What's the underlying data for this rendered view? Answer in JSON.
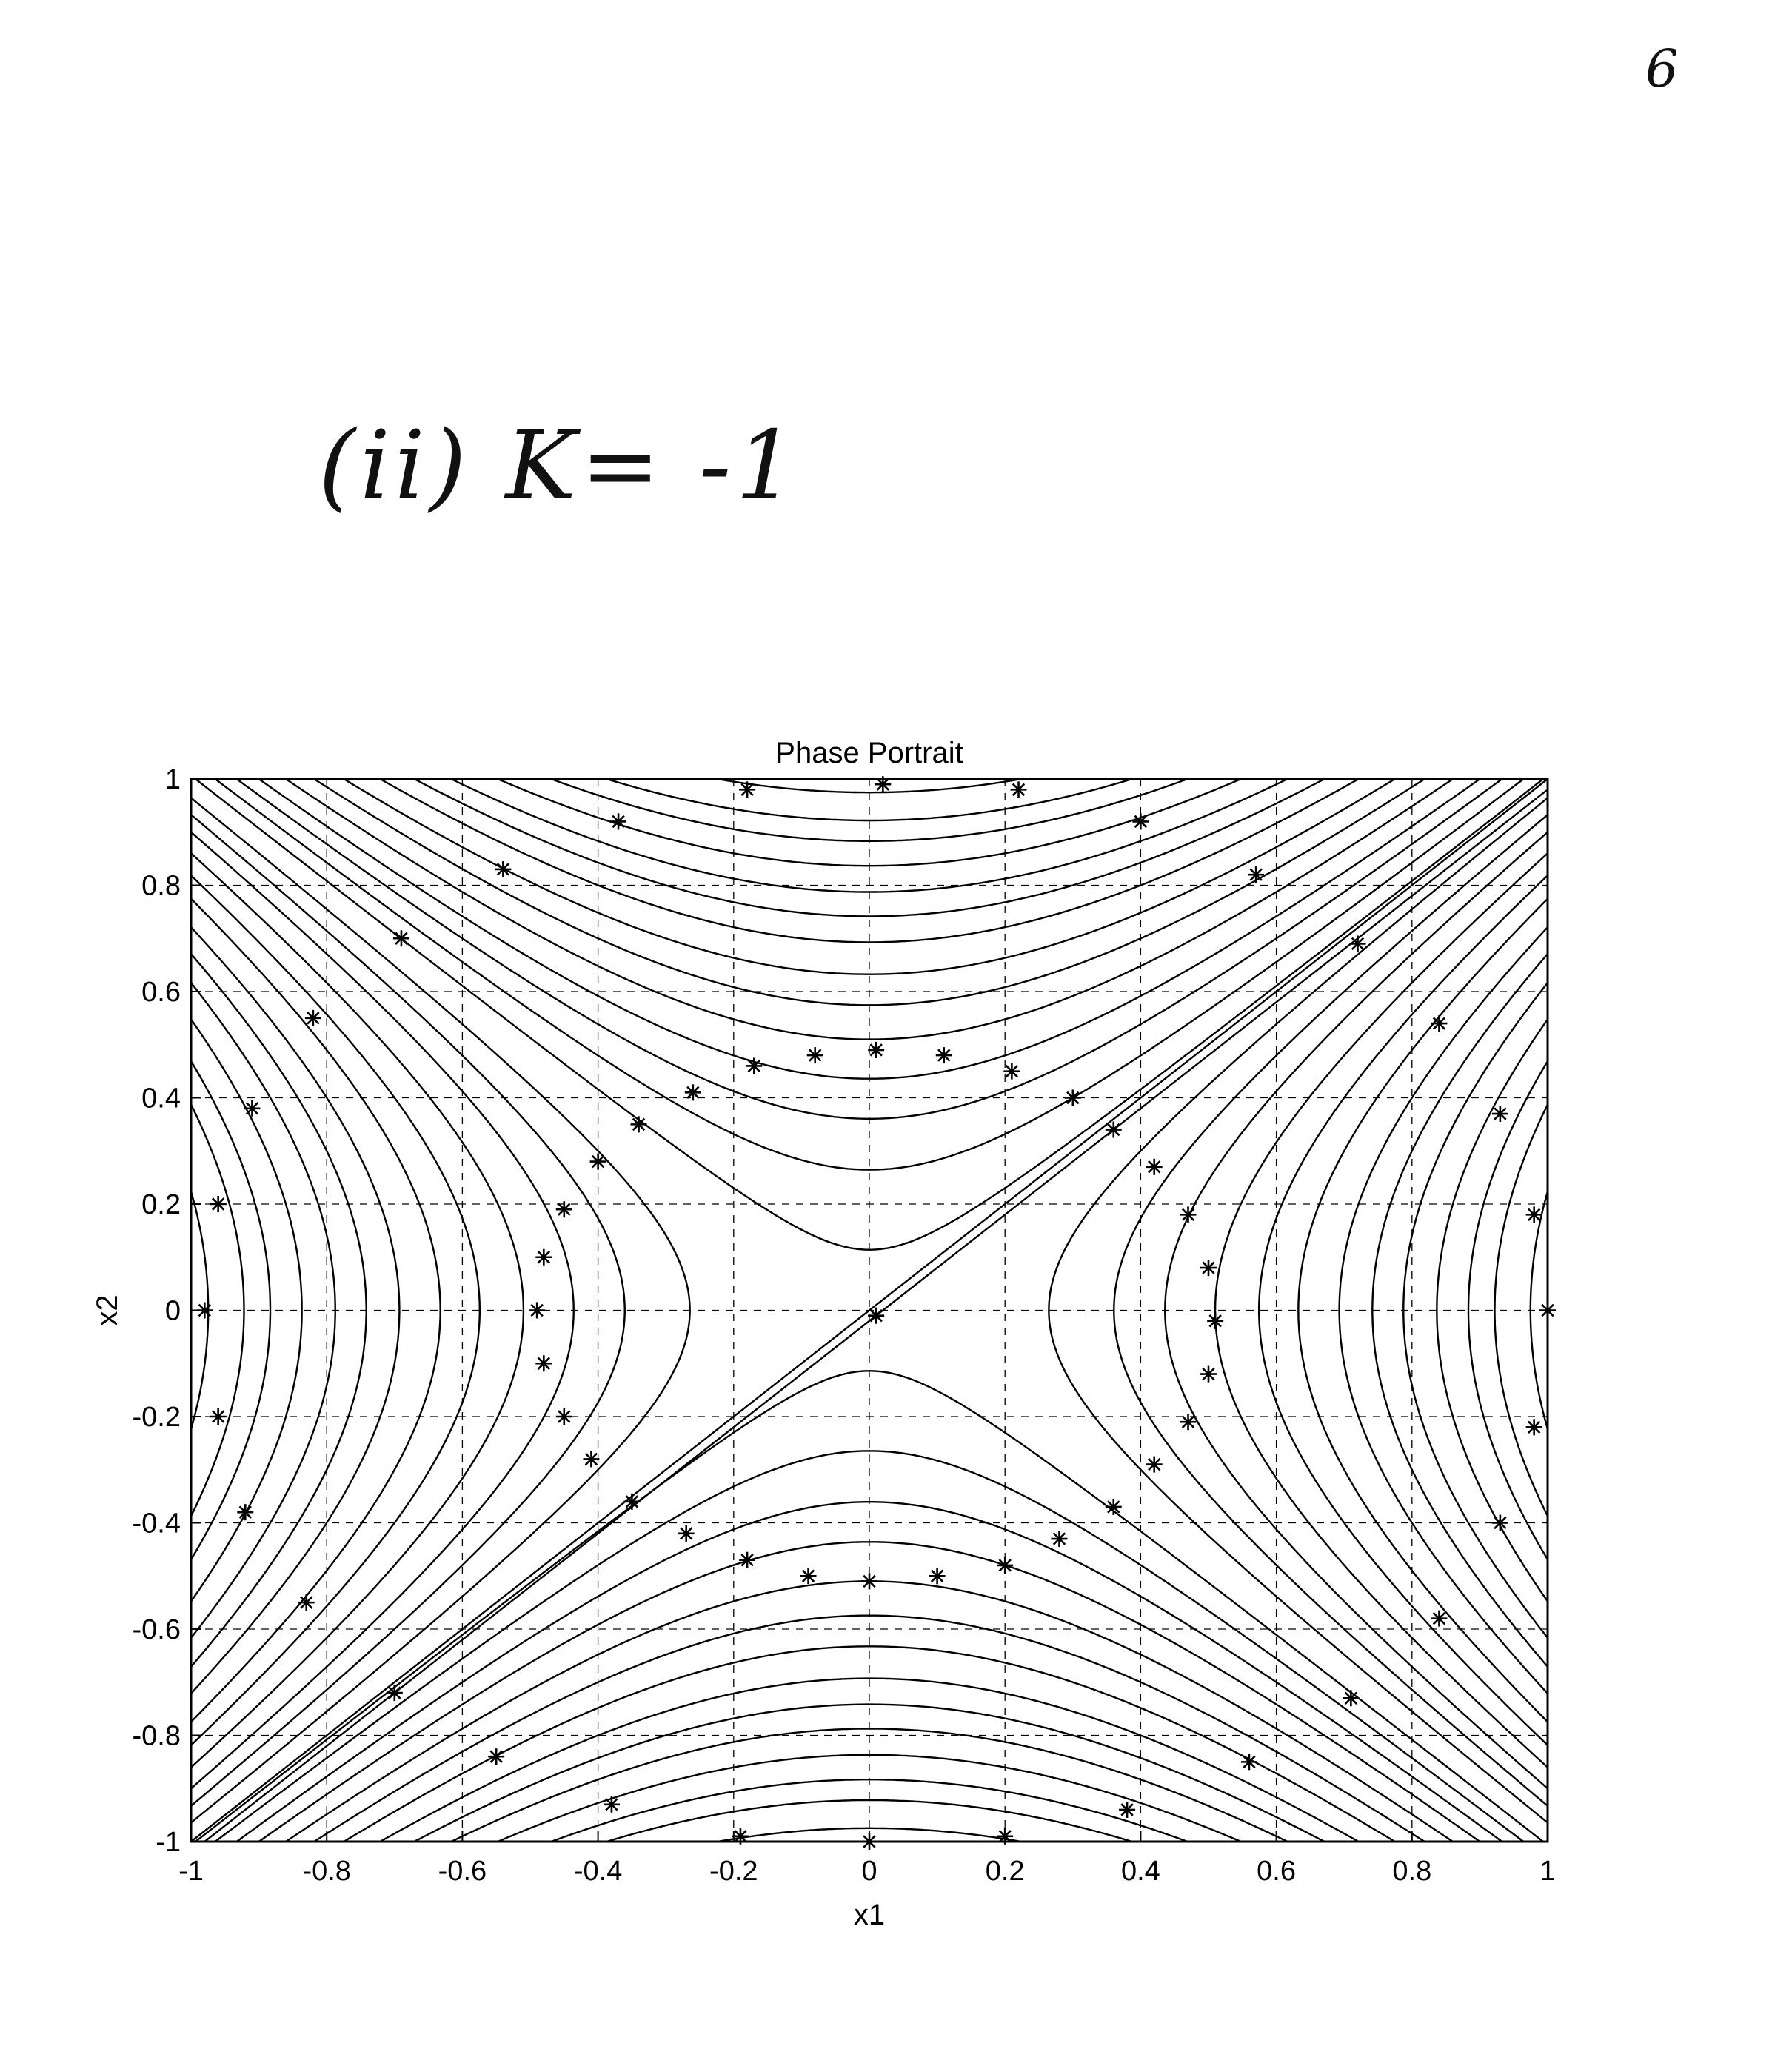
{
  "page": {
    "page_number": "6",
    "case_label": "(ii) K= -1"
  },
  "chart_data": {
    "type": "line",
    "title": "Phase Portrait",
    "xlabel": "x1",
    "ylabel": "x2",
    "xlim": [
      -1,
      1
    ],
    "ylim": [
      -1,
      1
    ],
    "xticks": [
      "-1",
      "-0.8",
      "-0.6",
      "-0.4",
      "-0.2",
      "0",
      "0.2",
      "0.4",
      "0.6",
      "0.8",
      "1"
    ],
    "yticks": [
      "-1",
      "-0.8",
      "-0.6",
      "-0.4",
      "-0.2",
      "0",
      "0.2",
      "0.4",
      "0.6",
      "0.8",
      "1"
    ],
    "grid": true,
    "grid_style": "dashed",
    "line_color": "#000000",
    "start_marker": "*",
    "trajectory_family": "x2^2 - x1^2 = c",
    "trajectory_constants": [
      -0.95,
      -0.85,
      -0.78,
      -0.7,
      -0.62,
      -0.55,
      -0.48,
      -0.4,
      -0.33,
      -0.26,
      -0.19,
      -0.13,
      -0.07,
      0.013,
      0.07,
      0.13,
      0.19,
      0.26,
      0.33,
      0.4,
      0.48,
      0.55,
      0.62,
      0.7,
      0.78,
      0.85,
      0.95
    ],
    "start_points": [
      [
        -0.98,
        0.0
      ],
      [
        -0.96,
        0.2
      ],
      [
        -0.96,
        -0.2
      ],
      [
        -0.91,
        0.38
      ],
      [
        -0.92,
        -0.38
      ],
      [
        -0.82,
        0.55
      ],
      [
        -0.83,
        -0.55
      ],
      [
        -0.69,
        0.7
      ],
      [
        -0.7,
        -0.72
      ],
      [
        -0.54,
        0.83
      ],
      [
        -0.55,
        -0.84
      ],
      [
        -0.37,
        0.92
      ],
      [
        -0.38,
        -0.93
      ],
      [
        -0.18,
        0.98
      ],
      [
        -0.19,
        -0.99
      ],
      [
        0.02,
        0.99
      ],
      [
        0.0,
        -1.0
      ],
      [
        0.22,
        0.98
      ],
      [
        0.2,
        -0.99
      ],
      [
        0.4,
        0.92
      ],
      [
        0.38,
        -0.94
      ],
      [
        0.57,
        0.82
      ],
      [
        0.56,
        -0.85
      ],
      [
        0.72,
        0.69
      ],
      [
        0.71,
        -0.73
      ],
      [
        0.84,
        0.54
      ],
      [
        0.84,
        -0.58
      ],
      [
        0.93,
        0.37
      ],
      [
        0.93,
        -0.4
      ],
      [
        0.98,
        0.18
      ],
      [
        0.98,
        -0.22
      ],
      [
        1.0,
        0.0
      ],
      [
        -0.49,
        0.0
      ],
      [
        -0.48,
        0.1
      ],
      [
        -0.48,
        -0.1
      ],
      [
        -0.45,
        0.19
      ],
      [
        -0.45,
        -0.2
      ],
      [
        -0.4,
        0.28
      ],
      [
        -0.41,
        -0.28
      ],
      [
        -0.34,
        0.35
      ],
      [
        -0.35,
        -0.36
      ],
      [
        -0.26,
        0.41
      ],
      [
        -0.27,
        -0.42
      ],
      [
        -0.17,
        0.46
      ],
      [
        -0.18,
        -0.47
      ],
      [
        -0.08,
        0.48
      ],
      [
        -0.09,
        -0.5
      ],
      [
        0.01,
        0.49
      ],
      [
        0.0,
        -0.51
      ],
      [
        0.11,
        0.48
      ],
      [
        0.1,
        -0.5
      ],
      [
        0.21,
        0.45
      ],
      [
        0.2,
        -0.48
      ],
      [
        0.3,
        0.4
      ],
      [
        0.28,
        -0.43
      ],
      [
        0.36,
        0.34
      ],
      [
        0.36,
        -0.37
      ],
      [
        0.42,
        0.27
      ],
      [
        0.42,
        -0.29
      ],
      [
        0.47,
        0.18
      ],
      [
        0.47,
        -0.21
      ],
      [
        0.5,
        0.08
      ],
      [
        0.5,
        -0.12
      ],
      [
        0.51,
        -0.02
      ],
      [
        0.01,
        -0.01
      ]
    ]
  }
}
